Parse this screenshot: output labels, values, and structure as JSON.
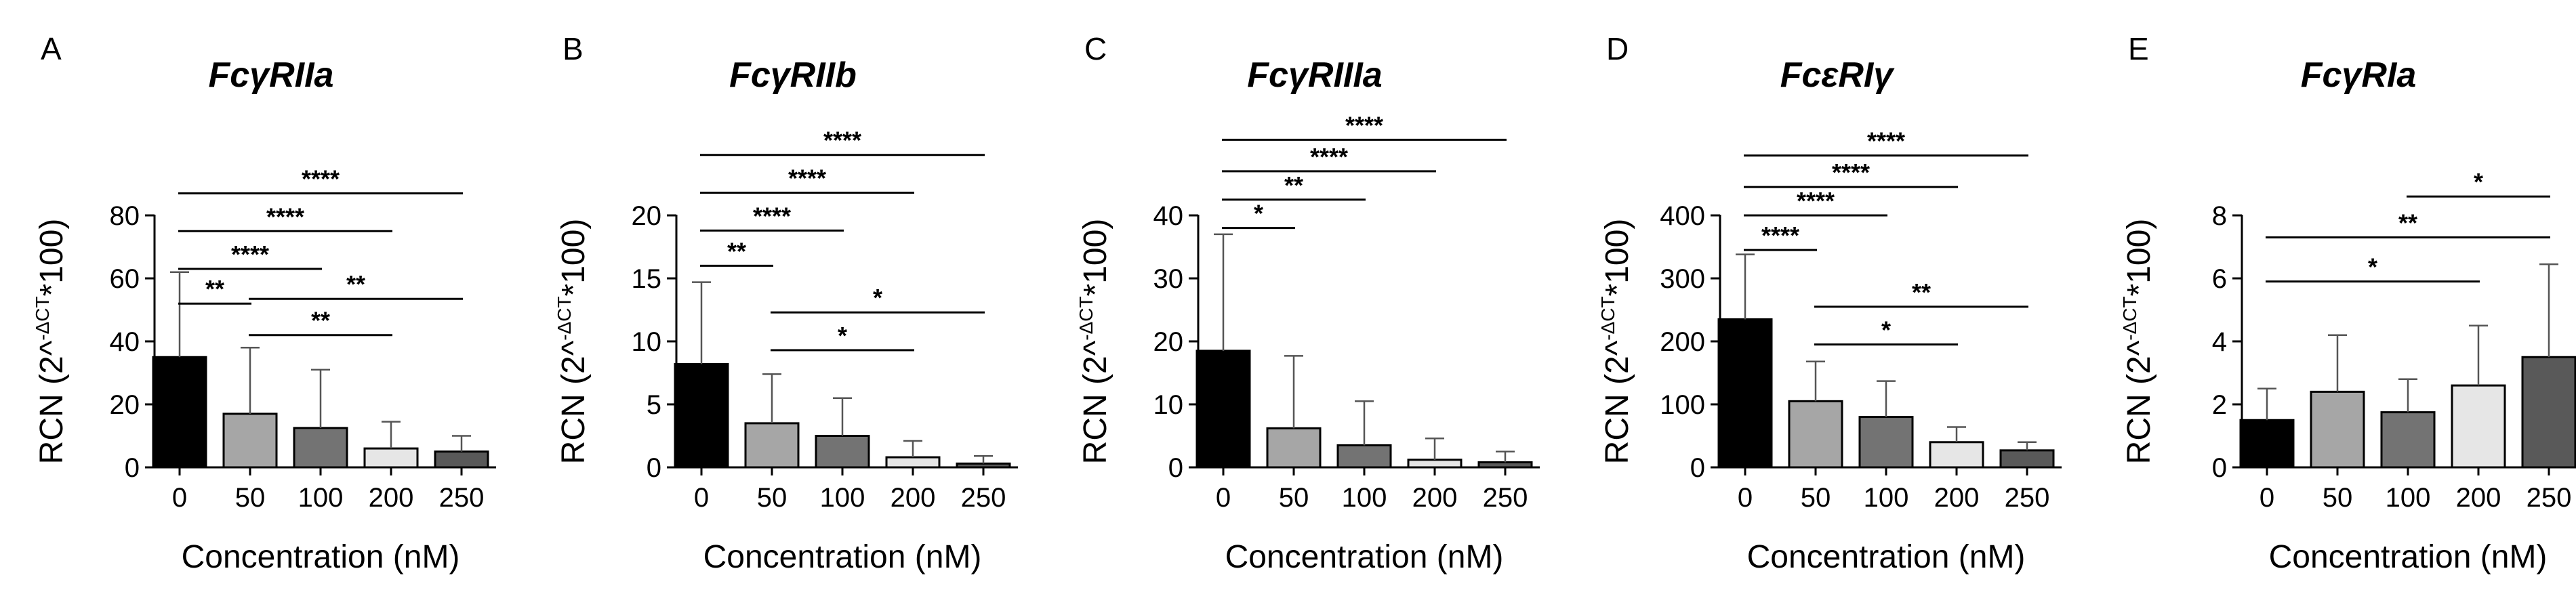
{
  "chart_data": [
    {
      "type": "bar",
      "panel": "A",
      "title": "FcγRIIa",
      "xlabel": "Concentration (nM)",
      "ylabel_main": "RCN (2^",
      "ylabel_sup": "-ΔCT",
      "ylabel_tail": "*100)",
      "categories": [
        "0",
        "50",
        "100",
        "200",
        "250"
      ],
      "values": [
        35,
        17,
        12.5,
        6,
        5
      ],
      "errors": [
        27,
        21,
        18.5,
        8.5,
        5
      ],
      "colors": [
        "#000000",
        "#a6a6a6",
        "#737373",
        "#e6e6e6",
        "#595959"
      ],
      "ylim": [
        0,
        80
      ],
      "yticks": [
        0,
        20,
        40,
        60,
        80
      ],
      "significance": [
        {
          "from": 0,
          "to": 1,
          "label": "**",
          "y": 52
        },
        {
          "from": 0,
          "to": 2,
          "label": "****",
          "y": 63
        },
        {
          "from": 0,
          "to": 3,
          "label": "****",
          "y": 75
        },
        {
          "from": 0,
          "to": 4,
          "label": "****",
          "y": 87
        },
        {
          "from": 1,
          "to": 3,
          "label": "**",
          "y": 42
        },
        {
          "from": 1,
          "to": 4,
          "label": "**",
          "y": 53.5
        }
      ]
    },
    {
      "type": "bar",
      "panel": "B",
      "title": "FcγRIIb",
      "xlabel": "Concentration (nM)",
      "ylabel_main": "RCN (2^",
      "ylabel_sup": "-ΔCT",
      "ylabel_tail": "*100)",
      "categories": [
        "0",
        "50",
        "100",
        "200",
        "250"
      ],
      "values": [
        8.2,
        3.5,
        2.5,
        0.8,
        0.3
      ],
      "errors": [
        6.5,
        3.9,
        3,
        1.3,
        0.6
      ],
      "colors": [
        "#000000",
        "#a6a6a6",
        "#737373",
        "#e6e6e6",
        "#595959"
      ],
      "ylim": [
        0,
        20
      ],
      "yticks": [
        0,
        5,
        10,
        15,
        20
      ],
      "significance": [
        {
          "from": 0,
          "to": 1,
          "label": "**",
          "y": 16
        },
        {
          "from": 0,
          "to": 2,
          "label": "****",
          "y": 18.8
        },
        {
          "from": 0,
          "to": 3,
          "label": "****",
          "y": 21.8
        },
        {
          "from": 0,
          "to": 4,
          "label": "****",
          "y": 24.8
        },
        {
          "from": 1,
          "to": 3,
          "label": "*",
          "y": 9.3
        },
        {
          "from": 1,
          "to": 4,
          "label": "*",
          "y": 12.3
        }
      ]
    },
    {
      "type": "bar",
      "panel": "C",
      "title": "FcγRIIIa",
      "xlabel": "Concentration (nM)",
      "ylabel_main": "RCN (2^",
      "ylabel_sup": "-ΔCT",
      "ylabel_tail": "*100)",
      "categories": [
        "0",
        "50",
        "100",
        "200",
        "250"
      ],
      "values": [
        18.5,
        6.2,
        3.5,
        1.2,
        0.8
      ],
      "errors": [
        18.5,
        11.5,
        7,
        3.4,
        1.7
      ],
      "colors": [
        "#000000",
        "#a6a6a6",
        "#737373",
        "#e6e6e6",
        "#595959"
      ],
      "ylim": [
        0,
        40
      ],
      "yticks": [
        0,
        10,
        20,
        30,
        40
      ],
      "significance": [
        {
          "from": 0,
          "to": 1,
          "label": "*",
          "y": 38
        },
        {
          "from": 0,
          "to": 2,
          "label": "**",
          "y": 42.5
        },
        {
          "from": 0,
          "to": 3,
          "label": "****",
          "y": 47
        },
        {
          "from": 0,
          "to": 4,
          "label": "****",
          "y": 52
        }
      ]
    },
    {
      "type": "bar",
      "panel": "D",
      "title": "FcεRIγ",
      "xlabel": "Concentration (nM)",
      "ylabel_main": "RCN (2^",
      "ylabel_sup": "-ΔCT",
      "ylabel_tail": "*100)",
      "categories": [
        "0",
        "50",
        "100",
        "200",
        "250"
      ],
      "values": [
        235,
        105,
        80,
        40,
        27
      ],
      "errors": [
        103,
        63,
        57,
        24,
        13
      ],
      "colors": [
        "#000000",
        "#a6a6a6",
        "#737373",
        "#e6e6e6",
        "#595959"
      ],
      "ylim": [
        0,
        400
      ],
      "yticks": [
        0,
        100,
        200,
        300,
        400
      ],
      "significance": [
        {
          "from": 0,
          "to": 1,
          "label": "****",
          "y": 345
        },
        {
          "from": 0,
          "to": 2,
          "label": "****",
          "y": 400
        },
        {
          "from": 0,
          "to": 3,
          "label": "****",
          "y": 445
        },
        {
          "from": 0,
          "to": 4,
          "label": "****",
          "y": 495
        },
        {
          "from": 1,
          "to": 3,
          "label": "*",
          "y": 195
        },
        {
          "from": 1,
          "to": 4,
          "label": "**",
          "y": 255
        }
      ]
    },
    {
      "type": "bar",
      "panel": "E",
      "title": "FcγRIa",
      "xlabel": "Concentration (nM)",
      "ylabel_main": "RCN (2^",
      "ylabel_sup": "-ΔCT",
      "ylabel_tail": "*100)",
      "categories": [
        "0",
        "50",
        "100",
        "200",
        "250"
      ],
      "values": [
        1.5,
        2.4,
        1.75,
        2.6,
        3.5
      ],
      "errors": [
        1.0,
        1.8,
        1.05,
        1.9,
        2.95
      ],
      "colors": [
        "#000000",
        "#a6a6a6",
        "#737373",
        "#e6e6e6",
        "#595959"
      ],
      "ylim": [
        0,
        8
      ],
      "yticks": [
        0,
        2,
        4,
        6,
        8
      ],
      "significance": [
        {
          "from": 0,
          "to": 3,
          "label": "*",
          "y": 5.9
        },
        {
          "from": 0,
          "to": 4,
          "label": "**",
          "y": 7.3
        },
        {
          "from": 2,
          "to": 4,
          "label": "*",
          "y": 8.6
        }
      ]
    }
  ]
}
